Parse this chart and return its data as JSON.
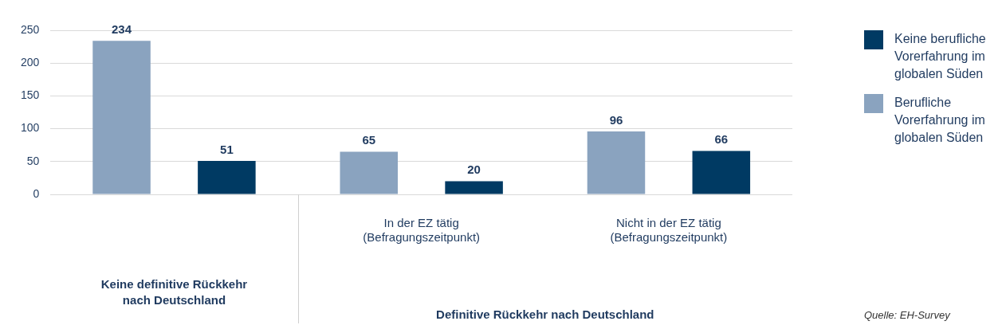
{
  "chart_data": {
    "type": "bar",
    "categories": [
      null,
      "In der EZ tätig (Befragungszeitpunkt)",
      "Nicht in der EZ tätig (Befragungszeitpunkt)"
    ],
    "series": [
      {
        "name": "Berufliche Vorerfahrung im globalen Süden",
        "color": "#8aa3bf",
        "values": [
          234,
          65,
          96
        ]
      },
      {
        "name": "Keine berufliche Vorerfahrung im globalen Süden",
        "color": "#003a63",
        "values": [
          51,
          20,
          66
        ]
      }
    ],
    "ylim": [
      0,
      250
    ],
    "yticks": [
      0,
      50,
      100,
      150,
      200,
      250
    ],
    "grid": "y",
    "legend": "top right",
    "data_labels": true,
    "annotations": [
      "Keine definitive Rückkehr nach Deutschland",
      "Definitive Rückkehr nach Deutschland",
      "Quelle: EH-Survey"
    ]
  }
}
